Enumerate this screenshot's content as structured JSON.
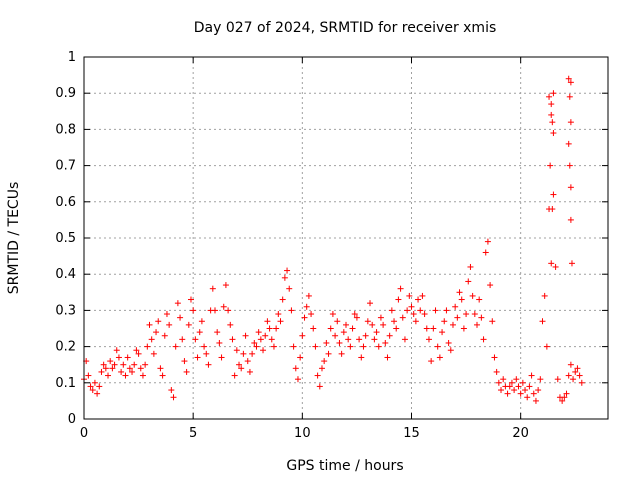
{
  "chart_data": {
    "type": "scatter",
    "title": "Day 027 of 2024, SRMTID for receiver xmis",
    "xlabel": "GPS time / hours",
    "ylabel": "SRMTID / TECUs",
    "xlim": [
      0,
      24
    ],
    "ylim": [
      0,
      1
    ],
    "xticks": [
      0,
      5,
      10,
      15,
      20
    ],
    "xtick_labels": [
      "0",
      "5",
      "10",
      "15",
      "20"
    ],
    "yticks": [
      0,
      0.1,
      0.2,
      0.3,
      0.4,
      0.5,
      0.6,
      0.7,
      0.8,
      0.9,
      1
    ],
    "ytick_labels": [
      "0",
      "0.1",
      "0.2",
      "0.3",
      "0.4",
      "0.5",
      "0.6",
      "0.7",
      "0.8",
      "0.9",
      "1"
    ],
    "grid": true,
    "marker": "+",
    "color": "#ff0000",
    "series": [
      {
        "name": "SRMTID",
        "x": [
          0.0,
          0.1,
          0.2,
          0.3,
          0.4,
          0.5,
          0.6,
          0.7,
          0.8,
          0.9,
          1.0,
          1.1,
          1.2,
          1.3,
          1.4,
          1.5,
          1.6,
          1.7,
          1.8,
          1.9,
          2.0,
          2.1,
          2.2,
          2.3,
          2.4,
          2.5,
          2.6,
          2.7,
          2.8,
          2.9,
          3.0,
          3.1,
          3.2,
          3.3,
          3.4,
          3.5,
          3.6,
          3.7,
          3.8,
          3.9,
          4.0,
          4.1,
          4.2,
          4.3,
          4.4,
          4.5,
          4.6,
          4.7,
          4.8,
          4.9,
          5.0,
          5.1,
          5.2,
          5.3,
          5.4,
          5.5,
          5.6,
          5.7,
          5.8,
          5.9,
          6.0,
          6.1,
          6.2,
          6.3,
          6.4,
          6.5,
          6.6,
          6.7,
          6.8,
          6.9,
          7.0,
          7.1,
          7.2,
          7.3,
          7.4,
          7.5,
          7.6,
          7.7,
          7.8,
          7.9,
          8.0,
          8.1,
          8.2,
          8.3,
          8.4,
          8.5,
          8.6,
          8.7,
          8.8,
          8.9,
          9.0,
          9.1,
          9.2,
          9.3,
          9.4,
          9.5,
          9.6,
          9.7,
          9.8,
          9.9,
          10.0,
          10.1,
          10.2,
          10.3,
          10.4,
          10.5,
          10.6,
          10.7,
          10.8,
          10.9,
          11.0,
          11.1,
          11.2,
          11.3,
          11.4,
          11.5,
          11.6,
          11.7,
          11.8,
          11.9,
          12.0,
          12.1,
          12.2,
          12.3,
          12.4,
          12.5,
          12.6,
          12.7,
          12.8,
          12.9,
          13.0,
          13.1,
          13.2,
          13.3,
          13.4,
          13.5,
          13.6,
          13.7,
          13.8,
          13.9,
          14.0,
          14.1,
          14.2,
          14.3,
          14.4,
          14.5,
          14.6,
          14.7,
          14.8,
          14.9,
          15.0,
          15.1,
          15.2,
          15.3,
          15.4,
          15.5,
          15.6,
          15.7,
          15.8,
          15.9,
          16.0,
          16.1,
          16.2,
          16.3,
          16.4,
          16.5,
          16.6,
          16.7,
          16.8,
          16.9,
          17.0,
          17.1,
          17.2,
          17.3,
          17.4,
          17.5,
          17.6,
          17.7,
          17.8,
          17.9,
          18.0,
          18.1,
          18.2,
          18.3,
          18.4,
          18.5,
          18.6,
          18.7,
          18.8,
          18.9,
          19.0,
          19.1,
          19.2,
          19.3,
          19.4,
          19.5,
          19.6,
          19.7,
          19.8,
          19.9,
          20.0,
          20.1,
          20.2,
          20.3,
          20.4,
          20.5,
          20.6,
          20.7,
          20.8,
          20.9,
          21.0,
          21.1,
          21.2,
          21.3,
          21.4,
          21.5,
          21.6,
          21.7,
          21.8,
          21.9,
          22.0,
          22.1,
          22.2,
          22.3,
          22.4,
          22.5,
          22.6,
          22.7,
          22.8
        ],
        "y": [
          0.11,
          0.16,
          0.12,
          0.09,
          0.08,
          0.1,
          0.07,
          0.09,
          0.13,
          0.15,
          0.14,
          0.12,
          0.16,
          0.14,
          0.15,
          0.19,
          0.17,
          0.13,
          0.15,
          0.12,
          0.17,
          0.14,
          0.13,
          0.15,
          0.19,
          0.18,
          0.14,
          0.12,
          0.15,
          0.2,
          0.26,
          0.22,
          0.18,
          0.24,
          0.27,
          0.14,
          0.12,
          0.23,
          0.29,
          0.26,
          0.08,
          0.06,
          0.2,
          0.32,
          0.28,
          0.22,
          0.16,
          0.13,
          0.26,
          0.33,
          0.3,
          0.22,
          0.17,
          0.24,
          0.27,
          0.2,
          0.18,
          0.15,
          0.3,
          0.36,
          0.3,
          0.24,
          0.21,
          0.17,
          0.31,
          0.37,
          0.3,
          0.26,
          0.22,
          0.12,
          0.19,
          0.15,
          0.14,
          0.18,
          0.23,
          0.16,
          0.13,
          0.18,
          0.21,
          0.2,
          0.24,
          0.22,
          0.19,
          0.23,
          0.27,
          0.25,
          0.22,
          0.2,
          0.25,
          0.29,
          0.27,
          0.33,
          0.39,
          0.41,
          0.36,
          0.3,
          0.2,
          0.14,
          0.11,
          0.17,
          0.23,
          0.28,
          0.31,
          0.34,
          0.29,
          0.25,
          0.2,
          0.12,
          0.09,
          0.14,
          0.16,
          0.21,
          0.18,
          0.25,
          0.29,
          0.23,
          0.27,
          0.21,
          0.18,
          0.24,
          0.26,
          0.22,
          0.2,
          0.25,
          0.29,
          0.28,
          0.22,
          0.17,
          0.2,
          0.23,
          0.27,
          0.32,
          0.26,
          0.22,
          0.24,
          0.2,
          0.28,
          0.26,
          0.21,
          0.17,
          0.23,
          0.3,
          0.27,
          0.25,
          0.33,
          0.36,
          0.28,
          0.22,
          0.3,
          0.34,
          0.31,
          0.29,
          0.27,
          0.33,
          0.3,
          0.34,
          0.29,
          0.25,
          0.22,
          0.16,
          0.25,
          0.3,
          0.2,
          0.17,
          0.24,
          0.27,
          0.3,
          0.21,
          0.19,
          0.26,
          0.31,
          0.28,
          0.35,
          0.33,
          0.25,
          0.29,
          0.38,
          0.42,
          0.34,
          0.29,
          0.26,
          0.33,
          0.28,
          0.22,
          0.46,
          0.49,
          0.37,
          0.27,
          0.17,
          0.13,
          0.1,
          0.08,
          0.11,
          0.09,
          0.07,
          0.09,
          0.1,
          0.08,
          0.11,
          0.09,
          0.07,
          0.1,
          0.08,
          0.06,
          0.09,
          0.12,
          0.07,
          0.05,
          0.08,
          0.11,
          0.27,
          0.34,
          0.2,
          0.58,
          0.87,
          0.79,
          0.42,
          0.11,
          0.06,
          0.05,
          0.06,
          0.07,
          0.12,
          0.15,
          0.11,
          0.13,
          0.14,
          0.12,
          0.1
        ],
        "extra_points": {
          "x": [
            21.3,
            21.4,
            21.45,
            21.35,
            21.5,
            21.4,
            21.45,
            21.5,
            22.2,
            22.3,
            22.25,
            22.3,
            22.2,
            22.25,
            22.3,
            22.3,
            22.35
          ],
          "y": [
            0.89,
            0.84,
            0.82,
            0.7,
            0.62,
            0.43,
            0.58,
            0.9,
            0.94,
            0.93,
            0.89,
            0.82,
            0.76,
            0.7,
            0.64,
            0.55,
            0.43
          ]
        }
      }
    ]
  }
}
